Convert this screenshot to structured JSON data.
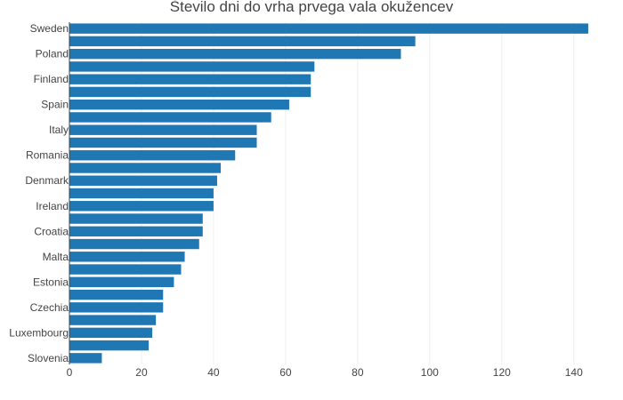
{
  "chart_data": {
    "type": "bar",
    "orientation": "horizontal",
    "title": "Število dni do vrha prvega vala okužencev",
    "xlabel": "",
    "ylabel": "",
    "xlim": [
      0,
      145
    ],
    "x_ticks": [
      0,
      20,
      40,
      60,
      80,
      100,
      120,
      140
    ],
    "grid": true,
    "bar_color": "#1f77b4",
    "categories": [
      "Sweden",
      "",
      "Poland",
      "",
      "Finland",
      "",
      "Spain",
      "",
      "Italy",
      "",
      "Romania",
      "",
      "Denmark",
      "",
      "Ireland",
      "",
      "Croatia",
      "",
      "Malta",
      "",
      "Estonia",
      "",
      "Czechia",
      "",
      "Luxembourg",
      "",
      "Slovenia"
    ],
    "values": [
      144,
      96,
      92,
      68,
      67,
      67,
      61,
      56,
      52,
      52,
      46,
      42,
      41,
      40,
      40,
      37,
      37,
      36,
      32,
      31,
      29,
      26,
      26,
      24,
      23,
      22,
      9
    ]
  }
}
